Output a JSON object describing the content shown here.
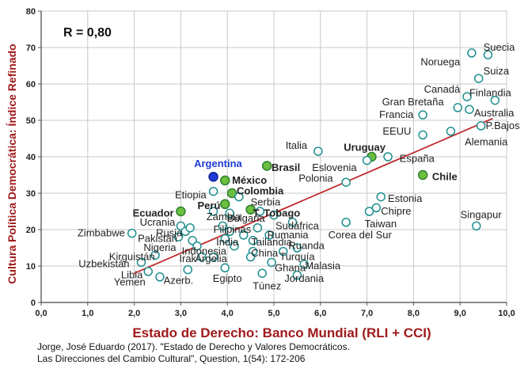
{
  "chart_data": {
    "type": "scatter",
    "xlabel": "Estado de Derecho: Banco Mundial (RLI + CCI)",
    "ylabel": "Cultura Política Democrática: Índice Refinado",
    "annotation": "R = 0,80",
    "xlim": [
      0,
      10
    ],
    "ylim": [
      0,
      80
    ],
    "x_ticks": [
      "0,0",
      "1,0",
      "2,0",
      "3,0",
      "4,0",
      "5,0",
      "6,0",
      "7,0",
      "8,0",
      "9,0",
      "10,0"
    ],
    "y_ticks": [
      "0",
      "10",
      "20",
      "30",
      "40",
      "50",
      "60",
      "70",
      "80"
    ],
    "grid": true,
    "trendline": {
      "x1": 2.0,
      "y1": 8.0,
      "x2": 9.7,
      "y2": 50.5
    },
    "points": [
      {
        "label": "Suecia",
        "x": 9.6,
        "y": 68,
        "style": "open",
        "lx": 9.5,
        "ly": 70,
        "anchor": "start",
        "weight": "normal"
      },
      {
        "label": "Noruega",
        "x": 9.25,
        "y": 68.5,
        "style": "open",
        "lx": 9.0,
        "ly": 66,
        "anchor": "end",
        "weight": "normal"
      },
      {
        "label": "Suiza",
        "x": 9.4,
        "y": 61.5,
        "style": "open",
        "lx": 9.5,
        "ly": 63.5,
        "anchor": "start",
        "weight": "normal"
      },
      {
        "label": "Canadá",
        "x": 9.15,
        "y": 56.5,
        "style": "open",
        "lx": 9.0,
        "ly": 58.5,
        "anchor": "end",
        "weight": "normal"
      },
      {
        "label": "Finlandia",
        "x": 9.75,
        "y": 55.5,
        "style": "open",
        "lx": 9.2,
        "ly": 57.5,
        "anchor": "start",
        "weight": "normal"
      },
      {
        "label": "Gran Bretaña",
        "x": 8.95,
        "y": 53.5,
        "style": "open",
        "lx": 8.65,
        "ly": 55,
        "anchor": "end",
        "weight": "normal"
      },
      {
        "label": "Australia",
        "x": 9.2,
        "y": 53,
        "style": "open",
        "lx": 9.3,
        "ly": 52,
        "anchor": "start",
        "weight": "normal"
      },
      {
        "label": "Francia",
        "x": 8.2,
        "y": 51.5,
        "style": "open",
        "lx": 8.0,
        "ly": 51.5,
        "anchor": "end",
        "weight": "normal"
      },
      {
        "label": "P.Bajos",
        "x": 9.45,
        "y": 48.5,
        "style": "open",
        "lx": 9.55,
        "ly": 48.5,
        "anchor": "start",
        "weight": "normal"
      },
      {
        "label": "EEUU",
        "x": 8.2,
        "y": 46,
        "style": "open",
        "lx": 7.95,
        "ly": 47,
        "anchor": "end",
        "weight": "normal"
      },
      {
        "label": "Alemania",
        "x": 8.8,
        "y": 47,
        "style": "open",
        "lx": 9.1,
        "ly": 44,
        "anchor": "start",
        "weight": "normal"
      },
      {
        "label": "Italia",
        "x": 5.95,
        "y": 41.5,
        "style": "open",
        "lx": 5.25,
        "ly": 43,
        "anchor": "start",
        "weight": "normal"
      },
      {
        "label": "Uruguay",
        "x": 7.1,
        "y": 40,
        "style": "filled",
        "lx": 6.5,
        "ly": 42.5,
        "anchor": "start",
        "weight": "bold"
      },
      {
        "label": "España",
        "x": 7.45,
        "y": 40,
        "style": "open",
        "lx": 7.7,
        "ly": 39.5,
        "anchor": "start",
        "weight": "normal"
      },
      {
        "label": "Eslovenia",
        "x": 7.0,
        "y": 39,
        "style": "open",
        "lx": 6.3,
        "ly": 37,
        "anchor": "middle",
        "weight": "normal"
      },
      {
        "label": "Chile",
        "x": 8.2,
        "y": 35,
        "style": "filled",
        "lx": 8.4,
        "ly": 34.5,
        "anchor": "start",
        "weight": "bold"
      },
      {
        "label": "Polonia",
        "x": 6.55,
        "y": 33,
        "style": "open",
        "lx": 5.9,
        "ly": 34,
        "anchor": "middle",
        "weight": "normal"
      },
      {
        "label": "Argentina",
        "x": 3.7,
        "y": 34.5,
        "style": "blue",
        "lx": 3.8,
        "ly": 38,
        "anchor": "middle",
        "weight": "bold"
      },
      {
        "label": "Brasil",
        "x": 4.85,
        "y": 37.5,
        "style": "filled",
        "lx": 4.95,
        "ly": 37,
        "anchor": "start",
        "weight": "bold"
      },
      {
        "label": "México",
        "x": 3.95,
        "y": 33.5,
        "style": "filled",
        "lx": 4.1,
        "ly": 33.5,
        "anchor": "start",
        "weight": "bold"
      },
      {
        "label": "Colombia",
        "x": 4.1,
        "y": 30,
        "style": "filled",
        "lx": 4.2,
        "ly": 30.5,
        "anchor": "start",
        "weight": "bold"
      },
      {
        "label": "Etiopia",
        "x": 3.7,
        "y": 30.5,
        "style": "open",
        "lx": 3.55,
        "ly": 29.5,
        "anchor": "end",
        "weight": "normal"
      },
      {
        "label": "Serbia",
        "x": 4.25,
        "y": 29,
        "style": "open",
        "lx": 4.5,
        "ly": 27.5,
        "anchor": "start",
        "weight": "normal"
      },
      {
        "label": "Perú",
        "x": 3.95,
        "y": 27,
        "style": "filled",
        "lx": 3.85,
        "ly": 26.5,
        "anchor": "end",
        "weight": "bold"
      },
      {
        "label": "Estonia",
        "x": 7.3,
        "y": 29,
        "style": "open",
        "lx": 7.45,
        "ly": 28.5,
        "anchor": "start",
        "weight": "normal"
      },
      {
        "label": "Ecuador",
        "x": 3.0,
        "y": 25,
        "style": "filled",
        "lx": 2.85,
        "ly": 24.5,
        "anchor": "end",
        "weight": "bold"
      },
      {
        "label": "T. Tobago",
        "x": 4.5,
        "y": 25.5,
        "style": "filled",
        "lx": 4.55,
        "ly": 24.5,
        "anchor": "start",
        "weight": "bold"
      },
      {
        "label": "Chipre",
        "x": 7.2,
        "y": 26,
        "style": "open",
        "lx": 7.3,
        "ly": 25,
        "anchor": "start",
        "weight": "normal"
      },
      {
        "label": "Zambia",
        "x": 3.7,
        "y": 25,
        "style": "open",
        "lx": 3.55,
        "ly": 23.5,
        "anchor": "start",
        "weight": "normal"
      },
      {
        "label": "Bulgaria",
        "x": 4.7,
        "y": 25,
        "style": "open",
        "lx": 4.4,
        "ly": 23,
        "anchor": "middle",
        "weight": "normal"
      },
      {
        "label": "Singapur",
        "x": 9.35,
        "y": 21,
        "style": "open",
        "lx": 9.45,
        "ly": 24,
        "anchor": "middle",
        "weight": "normal"
      },
      {
        "label": "Ucrania",
        "x": 3.0,
        "y": 21,
        "style": "open",
        "lx": 2.5,
        "ly": 22,
        "anchor": "middle",
        "weight": "normal"
      },
      {
        "label": "Taiwan",
        "x": 7.05,
        "y": 25,
        "style": "open",
        "lx": 6.95,
        "ly": 21.5,
        "anchor": "start",
        "weight": "normal"
      },
      {
        "label": "Filipinas",
        "x": 3.9,
        "y": 21,
        "style": "open",
        "lx": 3.7,
        "ly": 20,
        "anchor": "start",
        "weight": "normal"
      },
      {
        "label": "Sudáfrica",
        "x": 5.4,
        "y": 22,
        "style": "open",
        "lx": 5.5,
        "ly": 21,
        "anchor": "middle",
        "weight": "normal"
      },
      {
        "label": "Zimbabwe",
        "x": 1.95,
        "y": 19,
        "style": "open",
        "lx": 1.8,
        "ly": 19,
        "anchor": "end",
        "weight": "normal"
      },
      {
        "label": "Rusia",
        "x": 3.1,
        "y": 19.5,
        "style": "open",
        "lx": 2.75,
        "ly": 19,
        "anchor": "middle",
        "weight": "normal"
      },
      {
        "label": "Rumania",
        "x": 4.9,
        "y": 18.5,
        "style": "open",
        "lx": 5.3,
        "ly": 18.5,
        "anchor": "middle",
        "weight": "normal"
      },
      {
        "label": "Corea del Sur",
        "x": 6.55,
        "y": 22,
        "style": "open",
        "lx": 6.85,
        "ly": 18.5,
        "anchor": "middle",
        "weight": "normal"
      },
      {
        "label": "Pakistán",
        "x": 2.95,
        "y": 18,
        "style": "open",
        "lx": 2.5,
        "ly": 17.5,
        "anchor": "middle",
        "weight": "normal"
      },
      {
        "label": "India",
        "x": 4.35,
        "y": 18.5,
        "style": "open",
        "lx": 4.0,
        "ly": 16.5,
        "anchor": "middle",
        "weight": "normal"
      },
      {
        "label": "Tailandia",
        "x": 4.55,
        "y": 17,
        "style": "open",
        "lx": 4.95,
        "ly": 16.5,
        "anchor": "middle",
        "weight": "normal"
      },
      {
        "label": "Nigeria",
        "x": 3.25,
        "y": 17,
        "style": "open",
        "lx": 2.55,
        "ly": 15,
        "anchor": "middle",
        "weight": "normal"
      },
      {
        "label": "Indonesia",
        "x": 4.15,
        "y": 15.5,
        "style": "open",
        "lx": 3.5,
        "ly": 14,
        "anchor": "middle",
        "weight": "normal"
      },
      {
        "label": "China",
        "x": 4.55,
        "y": 14,
        "style": "open",
        "lx": 4.8,
        "ly": 13.5,
        "anchor": "middle",
        "weight": "normal"
      },
      {
        "label": "Ruanda",
        "x": 5.5,
        "y": 15,
        "style": "open",
        "lx": 5.7,
        "ly": 15.5,
        "anchor": "middle",
        "weight": "normal"
      },
      {
        "label": "Kirguistán",
        "x": 2.45,
        "y": 13,
        "style": "open",
        "lx": 1.95,
        "ly": 12.5,
        "anchor": "middle",
        "weight": "normal"
      },
      {
        "label": "Irak",
        "x": 3.45,
        "y": 12.5,
        "style": "open",
        "lx": 3.15,
        "ly": 12,
        "anchor": "middle",
        "weight": "normal"
      },
      {
        "label": "Argelia",
        "x": 3.7,
        "y": 12.5,
        "style": "open",
        "lx": 3.65,
        "ly": 12,
        "anchor": "middle",
        "weight": "normal"
      },
      {
        "label": "Turquía",
        "x": 5.2,
        "y": 14,
        "style": "open",
        "lx": 5.5,
        "ly": 12.5,
        "anchor": "middle",
        "weight": "normal"
      },
      {
        "label": "Uzbekistán",
        "x": 2.15,
        "y": 11,
        "style": "open",
        "lx": 1.35,
        "ly": 10.5,
        "anchor": "middle",
        "weight": "normal"
      },
      {
        "label": "Malasia",
        "x": 5.65,
        "y": 10.5,
        "style": "open",
        "lx": 6.05,
        "ly": 10,
        "anchor": "middle",
        "weight": "normal"
      },
      {
        "label": "Ghana",
        "x": 4.95,
        "y": 11,
        "style": "open",
        "lx": 5.35,
        "ly": 9.5,
        "anchor": "middle",
        "weight": "normal"
      },
      {
        "label": "Libia",
        "x": 2.3,
        "y": 8.5,
        "style": "open",
        "lx": 1.95,
        "ly": 7.5,
        "anchor": "middle",
        "weight": "normal"
      },
      {
        "label": "Egipto",
        "x": 3.95,
        "y": 9.5,
        "style": "open",
        "lx": 4.0,
        "ly": 6.5,
        "anchor": "middle",
        "weight": "normal"
      },
      {
        "label": "Jordania",
        "x": 5.5,
        "y": 7.5,
        "style": "open",
        "lx": 5.65,
        "ly": 6.5,
        "anchor": "middle",
        "weight": "normal"
      },
      {
        "label": "Yemen",
        "x": 2.55,
        "y": 7,
        "style": "open",
        "lx": 1.9,
        "ly": 5.5,
        "anchor": "middle",
        "weight": "normal"
      },
      {
        "label": "Azerb.",
        "x": 3.15,
        "y": 9,
        "style": "open",
        "lx": 2.95,
        "ly": 6,
        "anchor": "middle",
        "weight": "normal"
      },
      {
        "label": "Túnez",
        "x": 4.75,
        "y": 8,
        "style": "open",
        "lx": 4.85,
        "ly": 4.5,
        "anchor": "middle",
        "weight": "normal"
      },
      {
        "label": "",
        "x": 3.2,
        "y": 20.5,
        "style": "open"
      },
      {
        "label": "",
        "x": 4.05,
        "y": 24.5,
        "style": "open"
      },
      {
        "label": "",
        "x": 4.65,
        "y": 20.5,
        "style": "open"
      },
      {
        "label": "",
        "x": 5.0,
        "y": 24,
        "style": "open"
      },
      {
        "label": "",
        "x": 4.05,
        "y": 19.5,
        "style": "open"
      },
      {
        "label": "",
        "x": 4.5,
        "y": 12.5,
        "style": "open"
      },
      {
        "label": "",
        "x": 3.95,
        "y": 17.5,
        "style": "open"
      },
      {
        "label": "",
        "x": 3.35,
        "y": 15.5,
        "style": "open"
      }
    ]
  },
  "source": {
    "line1": "Jorge, José Eduardo (2017). \"Estado de Derecho y Valores Democráticos.",
    "line2": "Las Direcciones del Cambio Cultural\", Question, 1(54): 172-206"
  },
  "colors": {
    "trend": "#c0282b",
    "open_marker": "#1f8f8f",
    "filled_marker": "#6cbf3f",
    "filled_stroke": "#2f7f2f",
    "blue_marker": "#1f3bd6",
    "axis_title": "#a01a1a",
    "grid": "#c8c8c8"
  }
}
